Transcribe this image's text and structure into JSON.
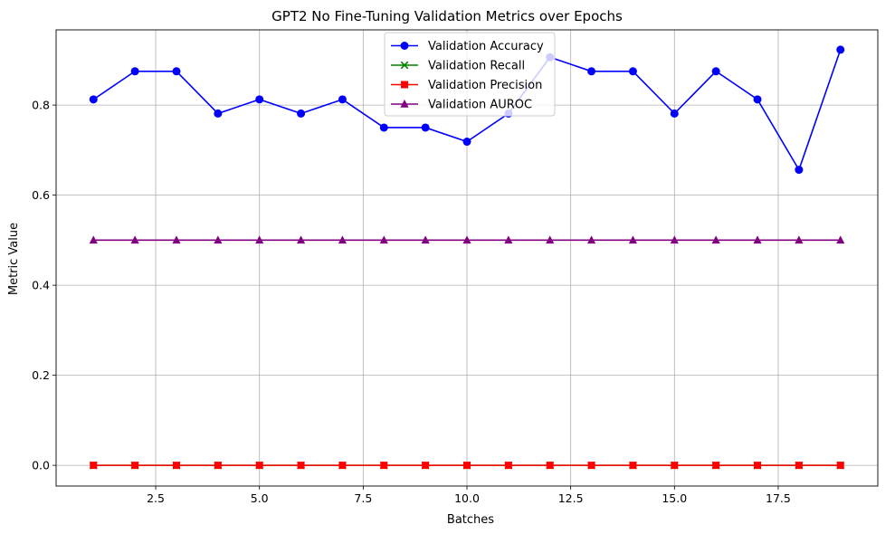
{
  "chart_data": {
    "type": "line",
    "title": "GPT2 No Fine-Tuning Validation Metrics over Epochs",
    "xlabel": "Batches",
    "ylabel": "Metric Value",
    "xlim": [
      0.1,
      19.9
    ],
    "ylim": [
      -0.046,
      0.967
    ],
    "xticks": [
      2.5,
      5.0,
      7.5,
      10.0,
      12.5,
      15.0,
      17.5
    ],
    "xtick_labels": [
      "2.5",
      "5.0",
      "7.5",
      "10.0",
      "12.5",
      "15.0",
      "17.5"
    ],
    "yticks": [
      0.0,
      0.2,
      0.4,
      0.6,
      0.8
    ],
    "ytick_labels": [
      "0.0",
      "0.2",
      "0.4",
      "0.6",
      "0.8"
    ],
    "grid": true,
    "legend_position": "top-center",
    "x": [
      1,
      2,
      3,
      4,
      5,
      6,
      7,
      8,
      9,
      10,
      11,
      12,
      13,
      14,
      15,
      16,
      17,
      18,
      19
    ],
    "series": [
      {
        "name": "Validation Accuracy",
        "color": "#0000ff",
        "marker": "circle",
        "values": [
          0.8125,
          0.875,
          0.875,
          0.78125,
          0.8125,
          0.78125,
          0.8125,
          0.75,
          0.75,
          0.71875,
          0.78125,
          0.90625,
          0.875,
          0.875,
          0.78125,
          0.875,
          0.8125,
          0.65625,
          0.923
        ]
      },
      {
        "name": "Validation Recall",
        "color": "#008000",
        "marker": "x",
        "values": [
          0,
          0,
          0,
          0,
          0,
          0,
          0,
          0,
          0,
          0,
          0,
          0,
          0,
          0,
          0,
          0,
          0,
          0,
          0
        ]
      },
      {
        "name": "Validation Precision",
        "color": "#ff0000",
        "marker": "square",
        "values": [
          0,
          0,
          0,
          0,
          0,
          0,
          0,
          0,
          0,
          0,
          0,
          0,
          0,
          0,
          0,
          0,
          0,
          0,
          0
        ]
      },
      {
        "name": "Validation AUROC",
        "color": "#800080",
        "marker": "triangle",
        "values": [
          0.5,
          0.5,
          0.5,
          0.5,
          0.5,
          0.5,
          0.5,
          0.5,
          0.5,
          0.5,
          0.5,
          0.5,
          0.5,
          0.5,
          0.5,
          0.5,
          0.5,
          0.5,
          0.5
        ]
      }
    ]
  }
}
